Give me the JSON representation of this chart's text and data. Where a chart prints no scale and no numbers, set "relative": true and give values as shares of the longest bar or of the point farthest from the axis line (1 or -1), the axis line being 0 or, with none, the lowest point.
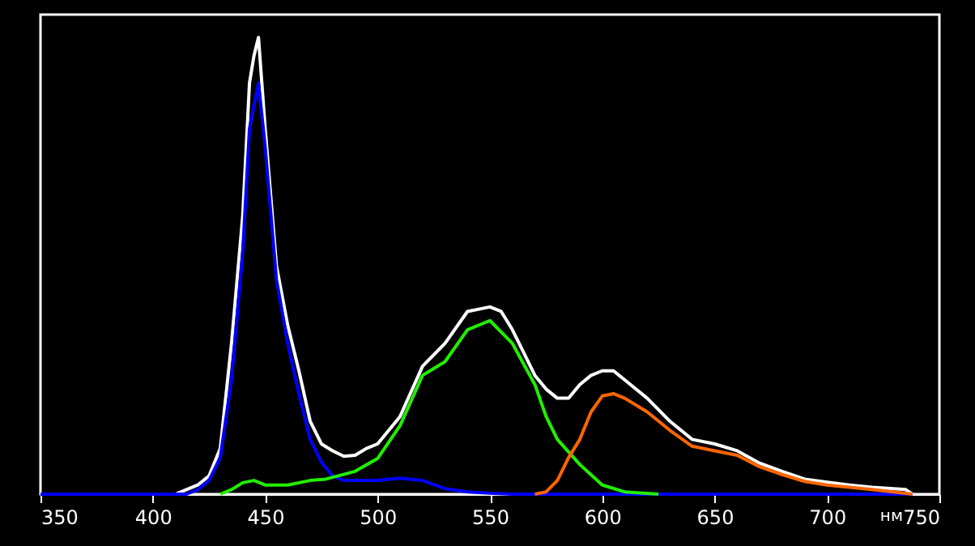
{
  "chart_data": {
    "type": "line",
    "relative": true,
    "xlabel": "нм",
    "xlim": [
      350,
      750
    ],
    "xticks": [
      350,
      400,
      450,
      500,
      550,
      600,
      650,
      700,
      750
    ],
    "grid": false,
    "marker": "none",
    "line_style": "solid",
    "series": [
      {
        "color": "#ffffff",
        "x": [
          350,
          410,
          415,
          420,
          425,
          430,
          435,
          440,
          443,
          445,
          447,
          450,
          455,
          460,
          465,
          470,
          475,
          480,
          485,
          490,
          495,
          500,
          510,
          520,
          530,
          540,
          550,
          555,
          560,
          565,
          570,
          575,
          580,
          585,
          590,
          595,
          600,
          605,
          610,
          620,
          630,
          640,
          650,
          660,
          670,
          680,
          690,
          700,
          710,
          720,
          735,
          738
        ],
        "values": [
          0,
          0,
          0.01,
          0.02,
          0.04,
          0.1,
          0.33,
          0.61,
          0.9,
          0.96,
          1.0,
          0.8,
          0.5,
          0.37,
          0.27,
          0.16,
          0.11,
          0.095,
          0.083,
          0.085,
          0.1,
          0.11,
          0.17,
          0.28,
          0.33,
          0.4,
          0.41,
          0.4,
          0.36,
          0.31,
          0.26,
          0.23,
          0.21,
          0.21,
          0.24,
          0.26,
          0.27,
          0.27,
          0.25,
          0.21,
          0.16,
          0.12,
          0.11,
          0.095,
          0.068,
          0.05,
          0.033,
          0.026,
          0.02,
          0.015,
          0.01,
          0
        ]
      },
      {
        "color": "#0000ff",
        "x": [
          350,
          415,
          420,
          425,
          430,
          435,
          440,
          443,
          447,
          450,
          455,
          460,
          465,
          470,
          475,
          480,
          485,
          490,
          500,
          510,
          520,
          530,
          540,
          550,
          560,
          738
        ],
        "values": [
          0,
          0,
          0.01,
          0.03,
          0.08,
          0.25,
          0.53,
          0.8,
          0.9,
          0.76,
          0.47,
          0.33,
          0.22,
          0.12,
          0.07,
          0.04,
          0.03,
          0.03,
          0.03,
          0.035,
          0.03,
          0.012,
          0.005,
          0.002,
          0,
          0
        ]
      },
      {
        "color": "#22ee00",
        "x": [
          430,
          435,
          440,
          445,
          450,
          460,
          470,
          477,
          490,
          500,
          510,
          520,
          530,
          540,
          550,
          560,
          570,
          575,
          580,
          590,
          600,
          610,
          625
        ],
        "values": [
          0,
          0.01,
          0.025,
          0.03,
          0.02,
          0.02,
          0.03,
          0.033,
          0.05,
          0.078,
          0.15,
          0.26,
          0.29,
          0.36,
          0.38,
          0.33,
          0.24,
          0.17,
          0.12,
          0.065,
          0.02,
          0.005,
          0
        ]
      },
      {
        "color": "#ff6600",
        "x": [
          570,
          575,
          580,
          585,
          590,
          595,
          600,
          605,
          610,
          620,
          630,
          640,
          650,
          660,
          670,
          680,
          690,
          700,
          710,
          720,
          738
        ],
        "values": [
          0,
          0.005,
          0.03,
          0.08,
          0.12,
          0.18,
          0.215,
          0.22,
          0.21,
          0.18,
          0.14,
          0.105,
          0.095,
          0.085,
          0.06,
          0.043,
          0.028,
          0.02,
          0.015,
          0.01,
          0
        ]
      }
    ]
  }
}
